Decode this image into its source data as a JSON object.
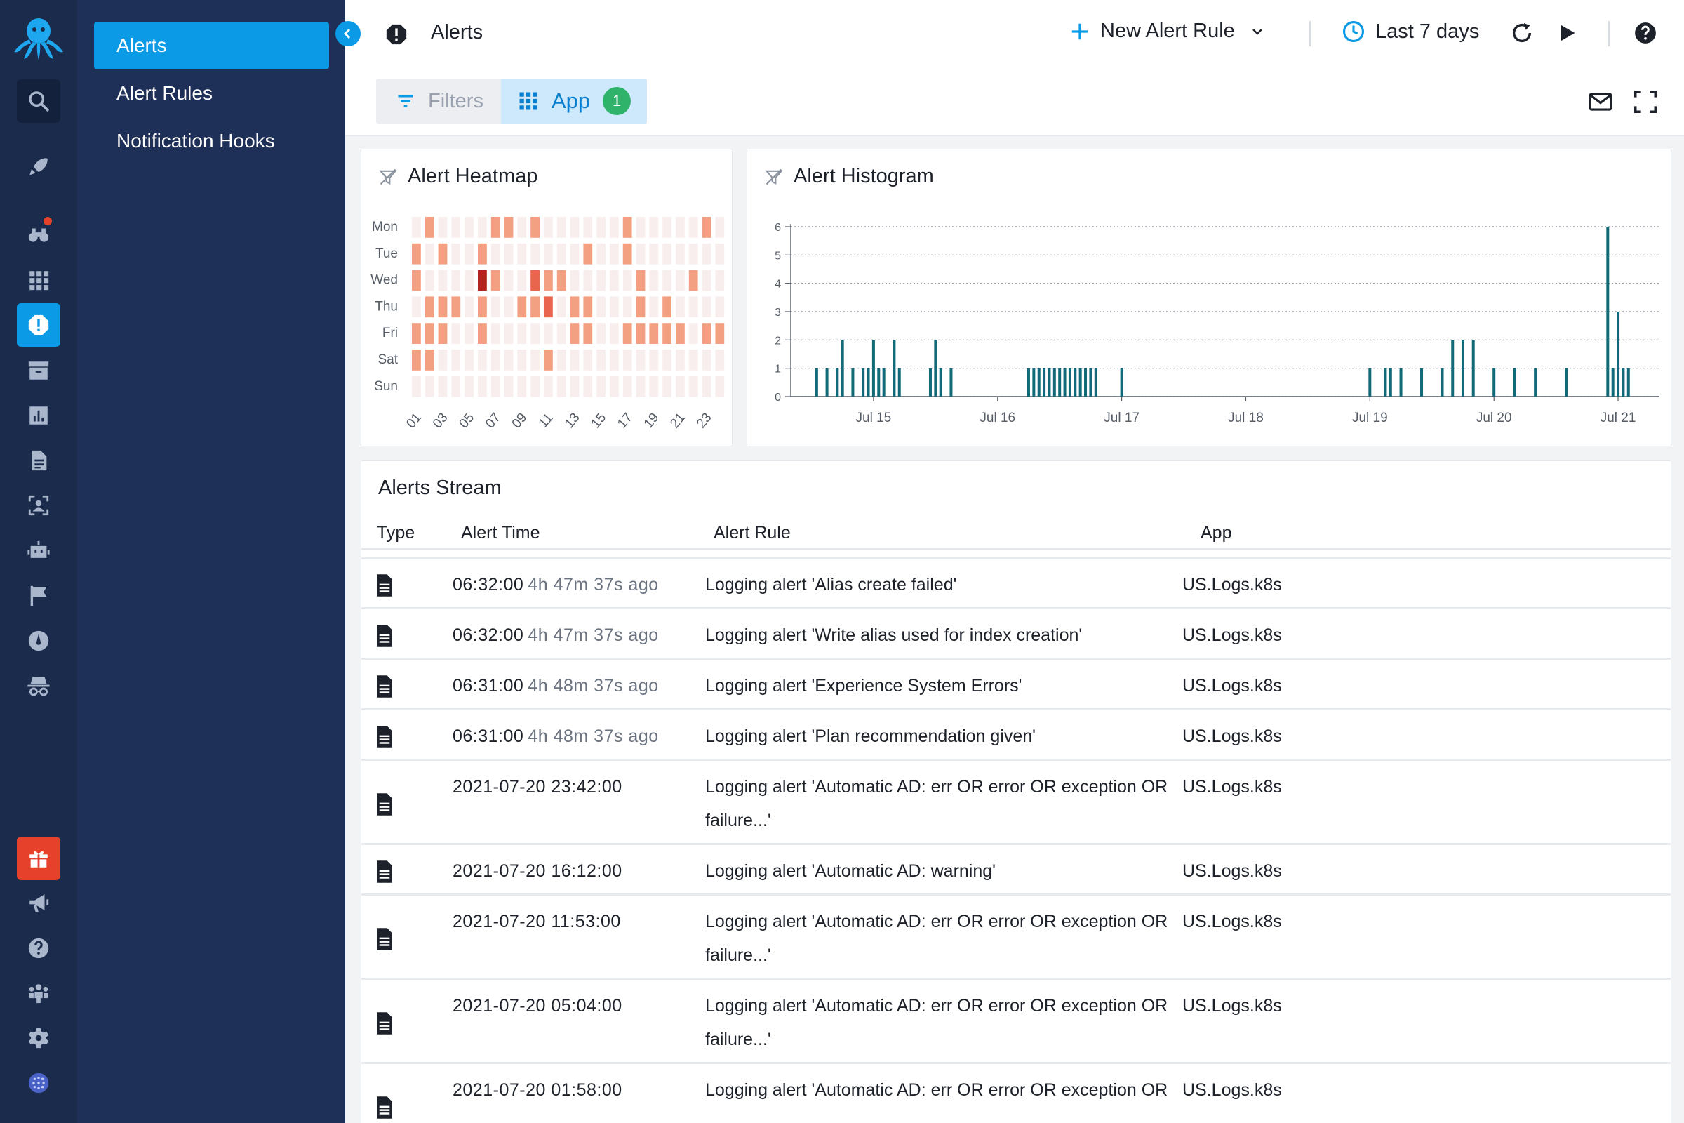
{
  "header": {
    "title": "Alerts",
    "new_alert_label": "New Alert Rule",
    "time_range_label": "Last 7 days"
  },
  "subnav": {
    "items": [
      {
        "label": "Alerts",
        "active": true
      },
      {
        "label": "Alert Rules",
        "active": false
      },
      {
        "label": "Notification Hooks",
        "active": false
      }
    ]
  },
  "toolbar": {
    "filters_label": "Filters",
    "app_label": "App",
    "app_count": "1"
  },
  "heatmap": {
    "title": "Alert Heatmap",
    "days": [
      "Mon",
      "Tue",
      "Wed",
      "Thu",
      "Fri",
      "Sat",
      "Sun"
    ],
    "hour_labels": [
      "01",
      "03",
      "05",
      "07",
      "09",
      "11",
      "13",
      "15",
      "17",
      "19",
      "21",
      "23"
    ],
    "levels": [
      [
        1,
        2,
        1,
        1,
        1,
        1,
        2,
        2,
        1,
        2,
        1,
        1,
        1,
        1,
        1,
        1,
        2,
        1,
        1,
        1,
        1,
        1,
        2,
        1
      ],
      [
        2,
        1,
        2,
        1,
        1,
        2,
        1,
        1,
        1,
        1,
        1,
        1,
        1,
        2,
        1,
        1,
        2,
        1,
        1,
        1,
        1,
        1,
        1,
        1
      ],
      [
        2,
        1,
        1,
        1,
        1,
        4,
        2,
        1,
        1,
        3,
        2,
        2,
        1,
        1,
        1,
        1,
        1,
        2,
        1,
        1,
        1,
        2,
        1,
        1
      ],
      [
        1,
        2,
        2,
        2,
        1,
        2,
        1,
        1,
        2,
        2,
        3,
        1,
        2,
        2,
        1,
        1,
        1,
        2,
        1,
        2,
        1,
        1,
        1,
        1
      ],
      [
        2,
        2,
        2,
        1,
        1,
        2,
        1,
        1,
        1,
        1,
        1,
        1,
        2,
        2,
        1,
        1,
        2,
        2,
        2,
        2,
        2,
        1,
        2,
        2
      ],
      [
        2,
        2,
        1,
        1,
        1,
        1,
        1,
        1,
        1,
        1,
        2,
        1,
        1,
        1,
        1,
        1,
        1,
        1,
        1,
        1,
        1,
        1,
        1,
        1
      ],
      [
        1,
        1,
        1,
        1,
        1,
        1,
        1,
        1,
        1,
        1,
        1,
        1,
        1,
        1,
        1,
        1,
        1,
        1,
        1,
        1,
        1,
        1,
        1,
        1
      ]
    ],
    "colors": [
      "#ffffff",
      "#f7eeed",
      "#f3a082",
      "#e9654e",
      "#b3241b"
    ]
  },
  "histogram": {
    "title": "Alert Histogram",
    "color": "#126a78"
  },
  "chart_data": {
    "type": "bar",
    "ylim": [
      0,
      6
    ],
    "yticks": [
      0,
      1,
      2,
      3,
      4,
      5,
      6
    ],
    "xticks": [
      "Jul 15",
      "Jul 16",
      "Jul 17",
      "Jul 18",
      "Jul 19",
      "Jul 20",
      "Jul 21"
    ],
    "bars": [
      {
        "x": "2021-07-14T13:00",
        "value": 1
      },
      {
        "x": "2021-07-14T15:00",
        "value": 1
      },
      {
        "x": "2021-07-14T17:00",
        "value": 1
      },
      {
        "x": "2021-07-14T18:00",
        "value": 2
      },
      {
        "x": "2021-07-14T20:00",
        "value": 1
      },
      {
        "x": "2021-07-14T22:00",
        "value": 1
      },
      {
        "x": "2021-07-14T23:00",
        "value": 1
      },
      {
        "x": "2021-07-15T00:00",
        "value": 2
      },
      {
        "x": "2021-07-15T01:00",
        "value": 1
      },
      {
        "x": "2021-07-15T02:00",
        "value": 1
      },
      {
        "x": "2021-07-15T04:00",
        "value": 2
      },
      {
        "x": "2021-07-15T05:00",
        "value": 1
      },
      {
        "x": "2021-07-15T11:00",
        "value": 1
      },
      {
        "x": "2021-07-15T12:00",
        "value": 2
      },
      {
        "x": "2021-07-15T13:00",
        "value": 1
      },
      {
        "x": "2021-07-15T15:00",
        "value": 1
      },
      {
        "x": "2021-07-16T06:00",
        "value": 1
      },
      {
        "x": "2021-07-16T07:00",
        "value": 1
      },
      {
        "x": "2021-07-16T08:00",
        "value": 1
      },
      {
        "x": "2021-07-16T09:00",
        "value": 1
      },
      {
        "x": "2021-07-16T10:00",
        "value": 1
      },
      {
        "x": "2021-07-16T11:00",
        "value": 1
      },
      {
        "x": "2021-07-16T12:00",
        "value": 1
      },
      {
        "x": "2021-07-16T13:00",
        "value": 1
      },
      {
        "x": "2021-07-16T14:00",
        "value": 1
      },
      {
        "x": "2021-07-16T15:00",
        "value": 1
      },
      {
        "x": "2021-07-16T16:00",
        "value": 1
      },
      {
        "x": "2021-07-16T17:00",
        "value": 1
      },
      {
        "x": "2021-07-16T18:00",
        "value": 1
      },
      {
        "x": "2021-07-16T19:00",
        "value": 1
      },
      {
        "x": "2021-07-17T00:00",
        "value": 1
      },
      {
        "x": "2021-07-19T00:00",
        "value": 1
      },
      {
        "x": "2021-07-19T03:00",
        "value": 1
      },
      {
        "x": "2021-07-19T04:00",
        "value": 1
      },
      {
        "x": "2021-07-19T06:00",
        "value": 1
      },
      {
        "x": "2021-07-19T10:00",
        "value": 1
      },
      {
        "x": "2021-07-19T14:00",
        "value": 1
      },
      {
        "x": "2021-07-19T16:00",
        "value": 2
      },
      {
        "x": "2021-07-19T18:00",
        "value": 2
      },
      {
        "x": "2021-07-19T20:00",
        "value": 2
      },
      {
        "x": "2021-07-20T00:00",
        "value": 1
      },
      {
        "x": "2021-07-20T04:00",
        "value": 1
      },
      {
        "x": "2021-07-20T08:00",
        "value": 1
      },
      {
        "x": "2021-07-20T14:00",
        "value": 1
      },
      {
        "x": "2021-07-20T22:00",
        "value": 6
      },
      {
        "x": "2021-07-20T23:00",
        "value": 1
      },
      {
        "x": "2021-07-21T00:00",
        "value": 3
      },
      {
        "x": "2021-07-21T01:00",
        "value": 1
      },
      {
        "x": "2021-07-21T02:00",
        "value": 1
      }
    ]
  },
  "stream": {
    "title": "Alerts Stream",
    "columns": [
      "Type",
      "Alert Time",
      "Alert Rule",
      "App"
    ],
    "rows": [
      {
        "time": "06:32:00",
        "ago": "4h 47m 37s ago",
        "rule": "Logging alert 'Alias create failed'",
        "app": "US.Logs.k8s"
      },
      {
        "time": "06:32:00",
        "ago": "4h 47m 37s ago",
        "rule": "Logging alert 'Write alias used for index creation'",
        "app": "US.Logs.k8s"
      },
      {
        "time": "06:31:00",
        "ago": "4h 48m 37s ago",
        "rule": "Logging alert 'Experience System Errors'",
        "app": "US.Logs.k8s"
      },
      {
        "time": "06:31:00",
        "ago": "4h 48m 37s ago",
        "rule": "Logging alert 'Plan recommendation given'",
        "app": "US.Logs.k8s"
      },
      {
        "time": "2021-07-20 23:42:00",
        "ago": "",
        "rule": "Logging alert 'Automatic AD: err OR error OR exception OR failure...'",
        "app": "US.Logs.k8s"
      },
      {
        "time": "2021-07-20 16:12:00",
        "ago": "",
        "rule": "Logging alert 'Automatic AD: warning'",
        "app": "US.Logs.k8s"
      },
      {
        "time": "2021-07-20 11:53:00",
        "ago": "",
        "rule": "Logging alert 'Automatic AD: err OR error OR exception OR failure...'",
        "app": "US.Logs.k8s"
      },
      {
        "time": "2021-07-20 05:04:00",
        "ago": "",
        "rule": "Logging alert 'Automatic AD: err OR error OR exception OR failure...'",
        "app": "US.Logs.k8s"
      },
      {
        "time": "2021-07-20 01:58:00",
        "ago": "",
        "rule": "Logging alert 'Automatic AD: err OR error OR exception OR",
        "app": "US.Logs.k8s"
      }
    ]
  },
  "rail_icons": [
    "search-icon",
    "rocket-icon",
    "binoculars-icon",
    "apps-grid-icon",
    "alert-icon",
    "archive-icon",
    "bar-chart-icon",
    "document-icon",
    "scan-icon",
    "robot-icon",
    "flag-icon",
    "dashboard-icon",
    "spy-icon",
    "gift-icon",
    "megaphone-icon",
    "help-icon",
    "team-icon",
    "settings-icon",
    "account-icon"
  ]
}
